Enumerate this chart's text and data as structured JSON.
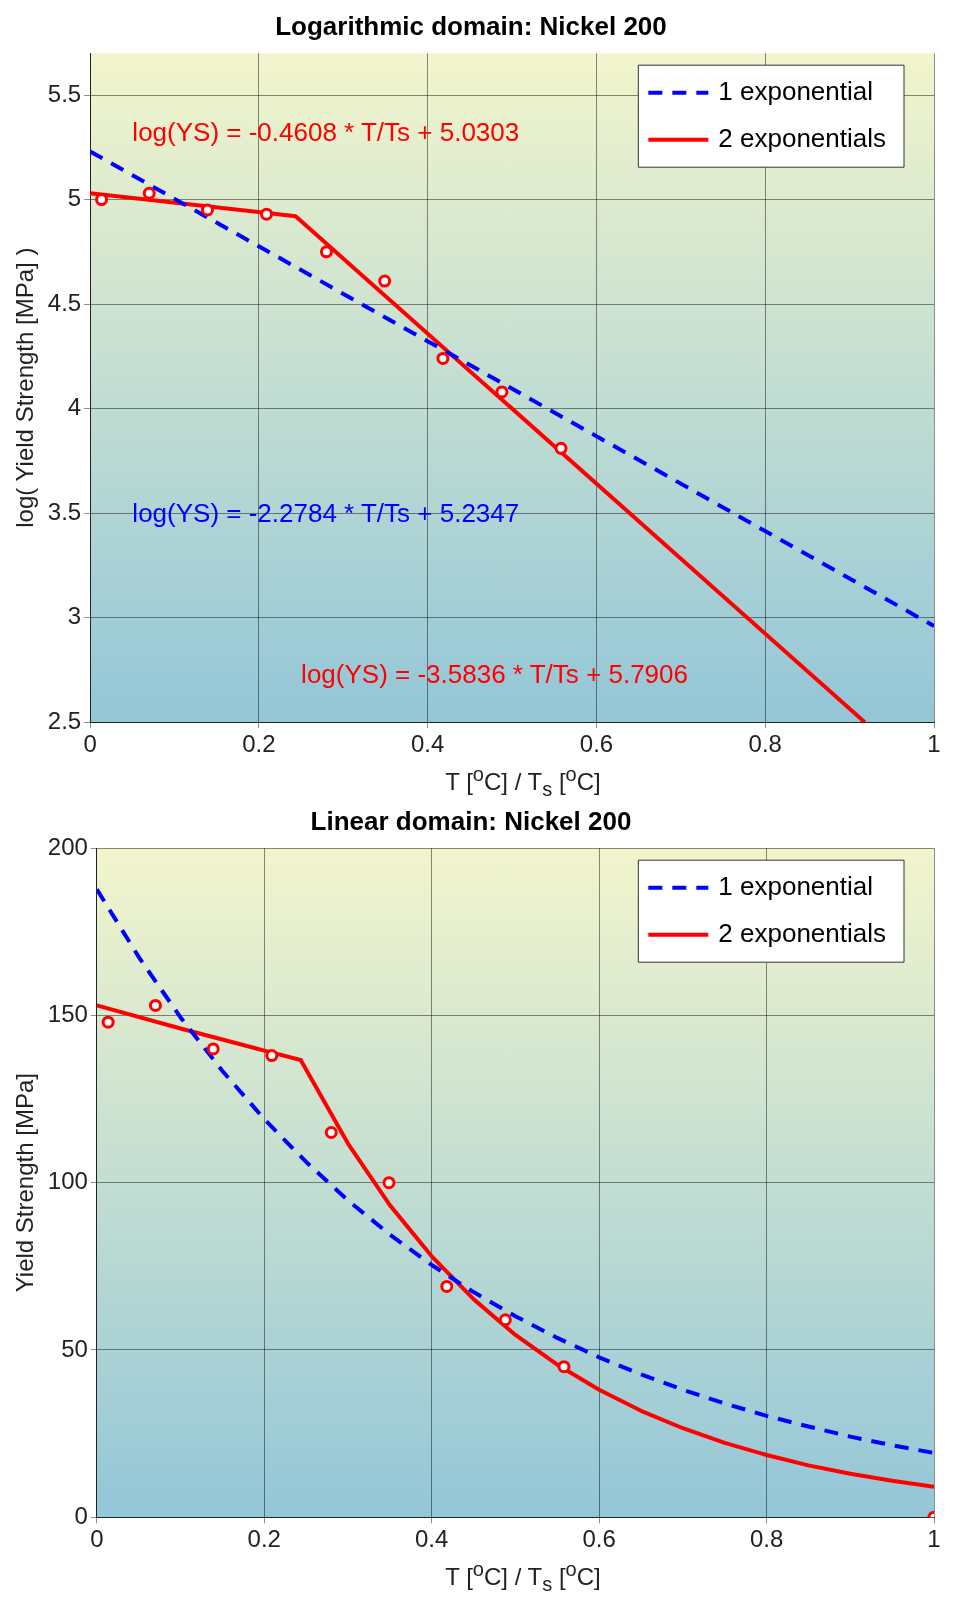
{
  "chart_data": [
    {
      "type": "line",
      "title": "Logarithmic domain: Nickel 200",
      "xlabel": "T [$^{o}$C] / T$_{s}$ [$^{o}$C]",
      "ylabel": "log( Yield Strength [MPa] )",
      "xlim": [
        0,
        1
      ],
      "xticks": [
        0,
        0.2,
        0.4,
        0.6,
        0.8,
        1
      ],
      "ylim": [
        2.5,
        5.7
      ],
      "yticks": [
        2.5,
        3,
        3.5,
        4,
        4.5,
        5,
        5.5
      ],
      "grid": true,
      "legend": "top right",
      "series": [
        {
          "type": "scatter",
          "marker": "circle",
          "color": "#ff0000",
          "x": [
            0.0135,
            0.07,
            0.139,
            0.209,
            0.28,
            0.349,
            0.418,
            0.488,
            0.558
          ],
          "values": [
            5.0,
            5.03,
            4.95,
            4.93,
            4.75,
            4.61,
            4.24,
            4.08,
            3.81
          ]
        },
        {
          "type": "line",
          "name": "1 exponential",
          "line_style": "dashed",
          "color": "#0000ff",
          "x": [
            0,
            1
          ],
          "values": [
            5.23,
            2.96
          ]
        },
        {
          "type": "line",
          "name": "2 exponentials",
          "line_style": "solid",
          "color": "#ff0000",
          "x": [
            0,
            0.2435,
            0.918
          ],
          "values": [
            5.03,
            4.92,
            2.5
          ]
        }
      ],
      "annotations": [
        "log(YS) = -0.4608 * T/Ts + 5.0303",
        "log(YS) = -2.2784 * T/Ts + 5.2347",
        "log(YS) = -3.5836 * T/Ts + 5.7906"
      ]
    },
    {
      "type": "line",
      "title": "Linear domain: Nickel 200",
      "xlabel": "T [$^{o}$C] / T$_{s}$ [$^{o}$C]",
      "ylabel": "Yield Strength [MPa]",
      "xlim": [
        0,
        1
      ],
      "xticks": [
        0,
        0.2,
        0.4,
        0.6,
        0.8,
        1
      ],
      "ylim": [
        0,
        200
      ],
      "yticks": [
        0,
        50,
        100,
        150,
        200
      ],
      "grid": true,
      "legend": "top right",
      "series": [
        {
          "type": "scatter",
          "marker": "circle",
          "color": "#ff0000",
          "x": [
            0.0135,
            0.07,
            0.139,
            0.209,
            0.28,
            0.349,
            0.418,
            0.488,
            0.558,
            1
          ],
          "values": [
            148,
            153,
            140,
            138,
            115,
            100,
            69,
            59,
            45,
            0
          ]
        },
        {
          "type": "line",
          "name": "1 exponential",
          "line_style": "dashed",
          "color": "#0000ff",
          "x": [
            0,
            0.05,
            0.1,
            0.15,
            0.2,
            0.25,
            0.3,
            0.35,
            0.4,
            0.45,
            0.5,
            0.55,
            0.6,
            0.65,
            0.7,
            0.75,
            0.8,
            0.85,
            0.9,
            0.95,
            1
          ],
          "values": [
            187.7,
            167.5,
            149.4,
            133.4,
            119.0,
            106.2,
            94.7,
            84.5,
            75.4,
            67.3,
            60.1,
            53.6,
            47.8,
            42.7,
            38.1,
            34.0,
            30.3,
            27.1,
            24.1,
            21.5,
            19.2
          ]
        },
        {
          "type": "line",
          "name": "2 exponentials",
          "line_style": "solid",
          "color": "#ff0000",
          "x": [
            0,
            0.1,
            0.2,
            0.2435,
            0.3,
            0.35,
            0.4,
            0.45,
            0.5,
            0.55,
            0.6,
            0.65,
            0.7,
            0.75,
            0.8,
            0.85,
            0.9,
            0.95,
            1
          ],
          "values": [
            153.0,
            146.1,
            139.5,
            136.7,
            111.7,
            93.3,
            78.0,
            65.2,
            54.5,
            45.6,
            38.1,
            31.8,
            26.6,
            22.2,
            18.6,
            15.5,
            13.0,
            10.9,
            9.1
          ]
        }
      ]
    }
  ]
}
